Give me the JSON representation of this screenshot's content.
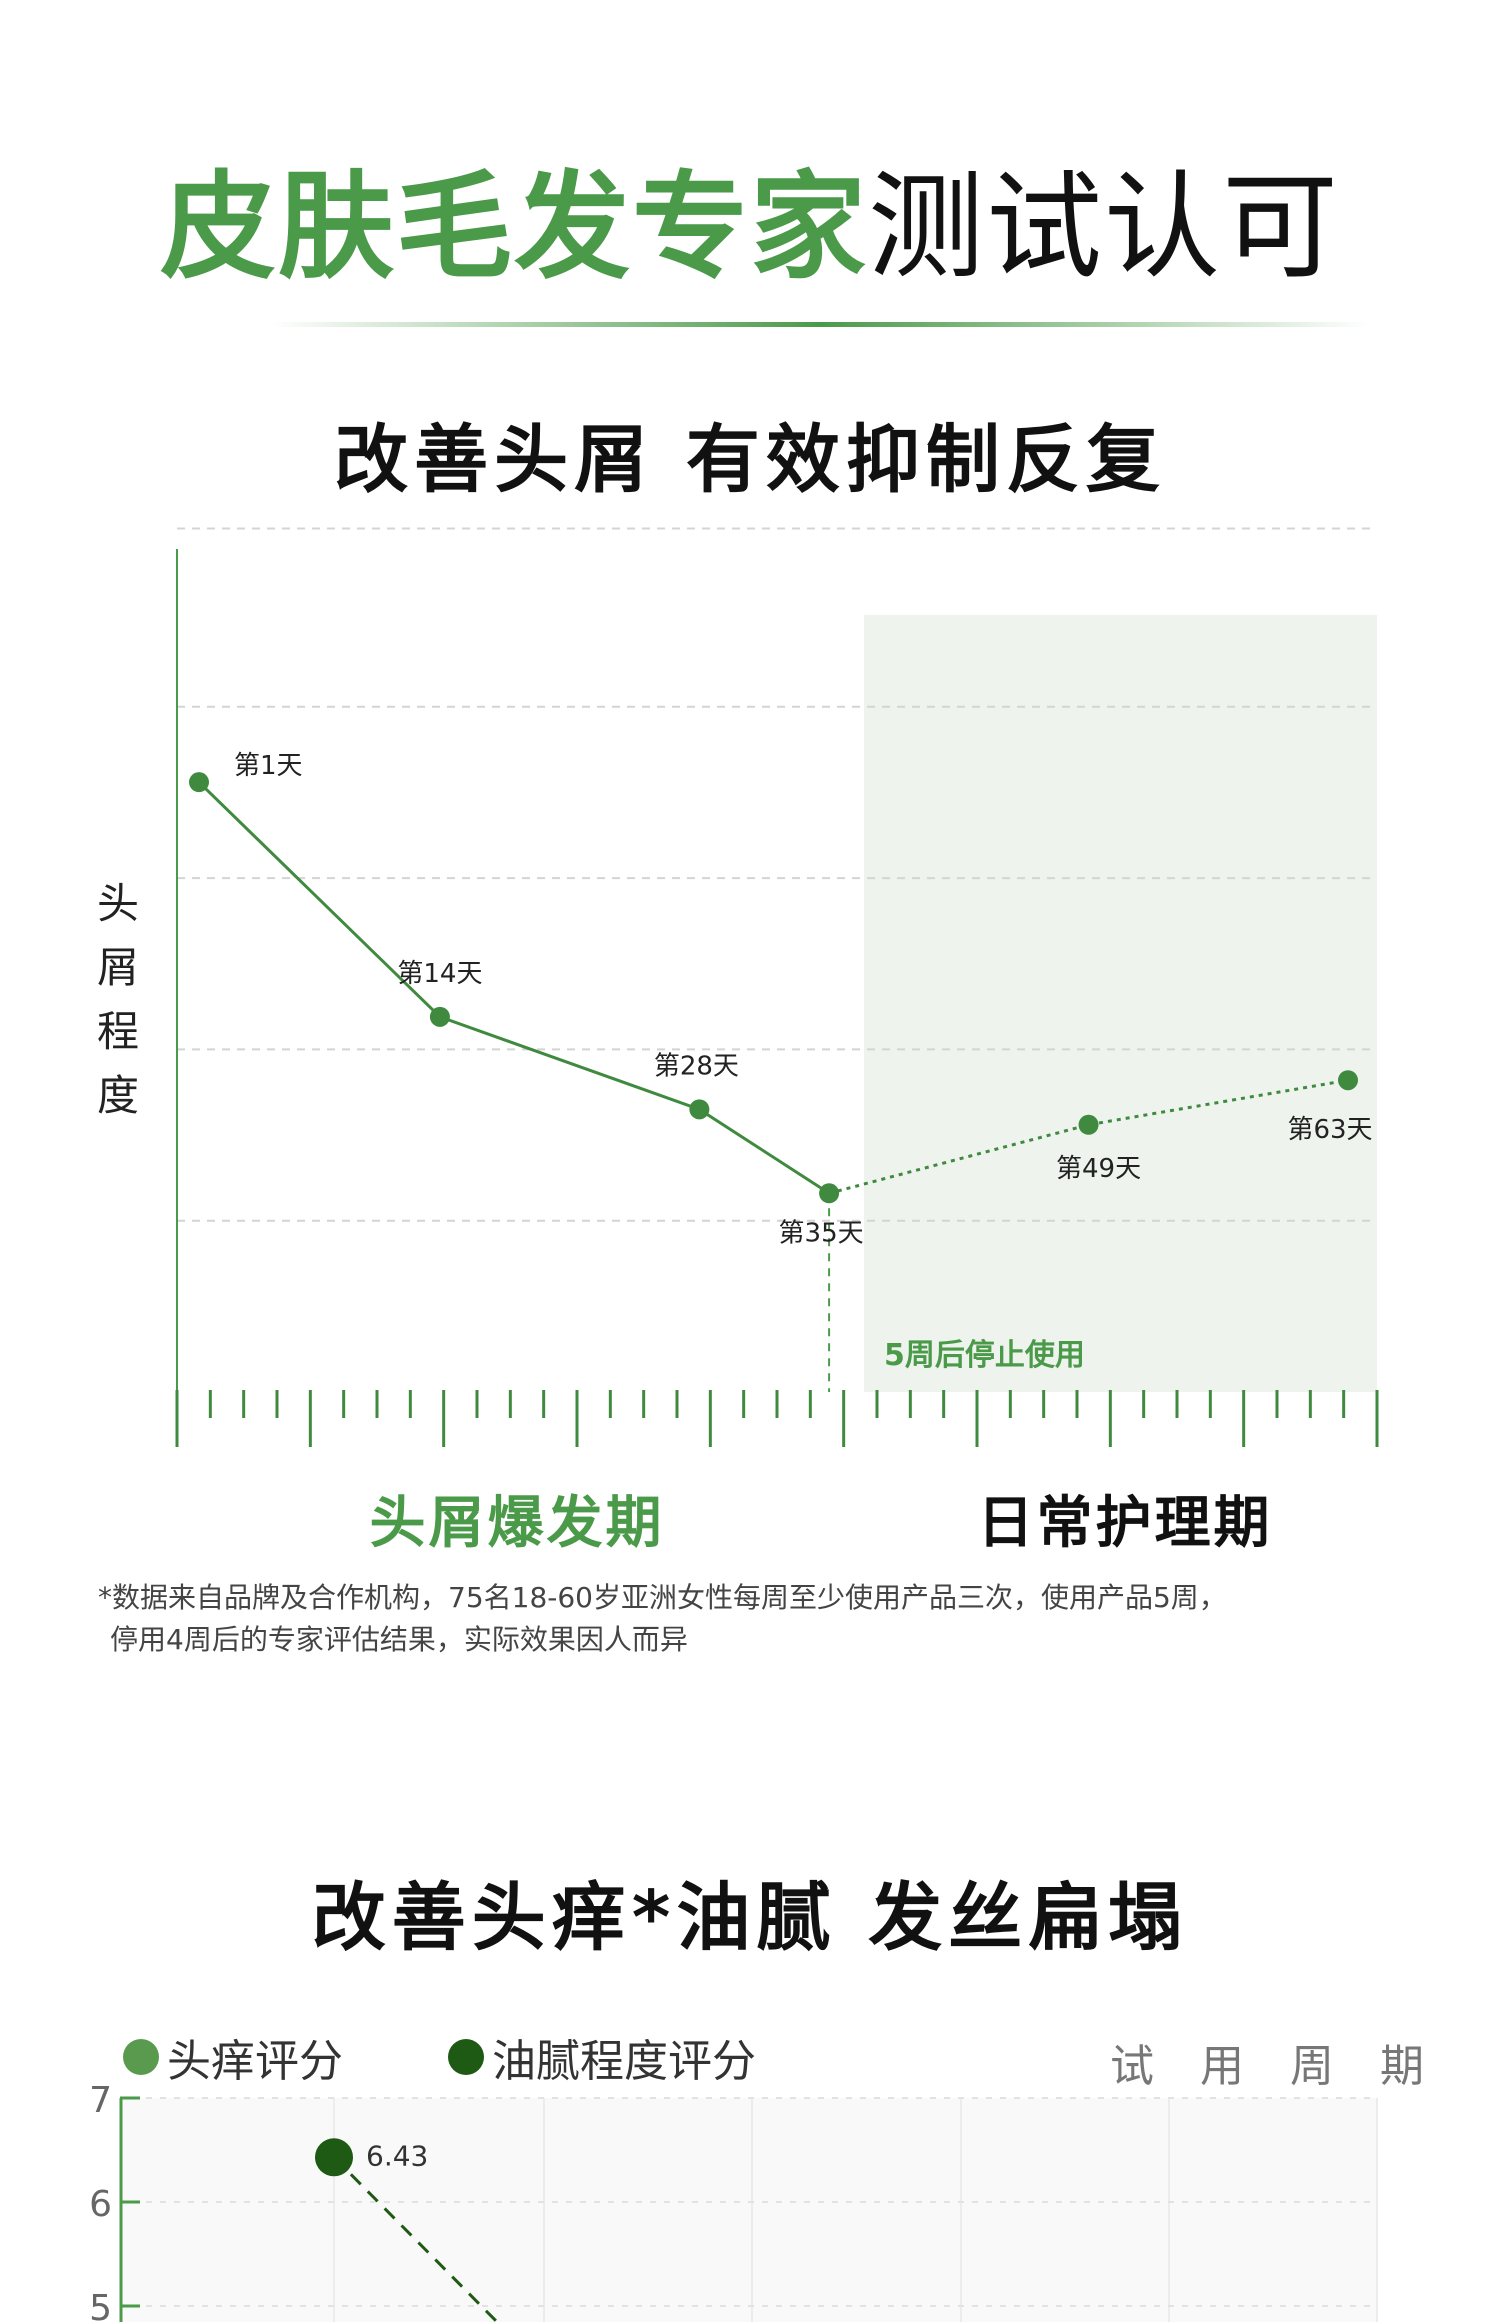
{
  "header": {
    "title_green": "皮肤毛发专家",
    "title_black": "测试认可"
  },
  "section1": {
    "heading": "改善头屑 有效抑制反复",
    "period_burst": "头屑爆发期",
    "period_care": "日常护理期",
    "footnote_line1": "*数据来自品牌及合作机构，75名18-60岁亚洲女性每周至少使用产品三次，使用产品5周，",
    "footnote_line2": "停用4周后的专家评估结果，实际效果因人而异"
  },
  "section2": {
    "heading": "改善头痒*油腻 发丝扁塌",
    "legend": [
      "头痒评分",
      "油腻程度评分"
    ],
    "period_label": "试 用 周 期"
  },
  "colors": {
    "green": "#4a9a4a",
    "line": "#3f8a3f",
    "dark_green": "#1e5a14",
    "shade": "#eef3ee"
  },
  "chart_data": [
    {
      "type": "line",
      "title": "改善头屑 有效抑制反复",
      "ylabel": "头屑程度",
      "xlabel": "",
      "note": "y values estimated in gridline units; no y tick labels shown",
      "x_days": [
        1,
        14,
        28,
        35,
        49,
        63
      ],
      "labels": [
        "第1天",
        "第14天",
        "第28天",
        "第35天",
        "第49天",
        "第63天"
      ],
      "values": [
        3.56,
        2.19,
        1.65,
        1.16,
        1.56,
        1.82
      ],
      "solid_until_index": 3,
      "stop_marker": {
        "day": 35,
        "label": "5周后停止使用"
      },
      "ylim": [
        0,
        5
      ],
      "xlim": [
        0,
        66
      ],
      "grid": true
    },
    {
      "type": "line",
      "title": "改善头痒*油腻 发丝扁塌",
      "legend": [
        "头痒评分",
        "油腻程度评分"
      ],
      "legend_placement": "top-left",
      "yticks": [
        "7",
        "6",
        "5"
      ],
      "ylim": [
        4.9,
        7
      ],
      "series": [
        {
          "name": "油腻程度评分",
          "points": [
            {
              "x": 1,
              "y": 6.43,
              "label": "6.43"
            }
          ]
        }
      ]
    }
  ]
}
